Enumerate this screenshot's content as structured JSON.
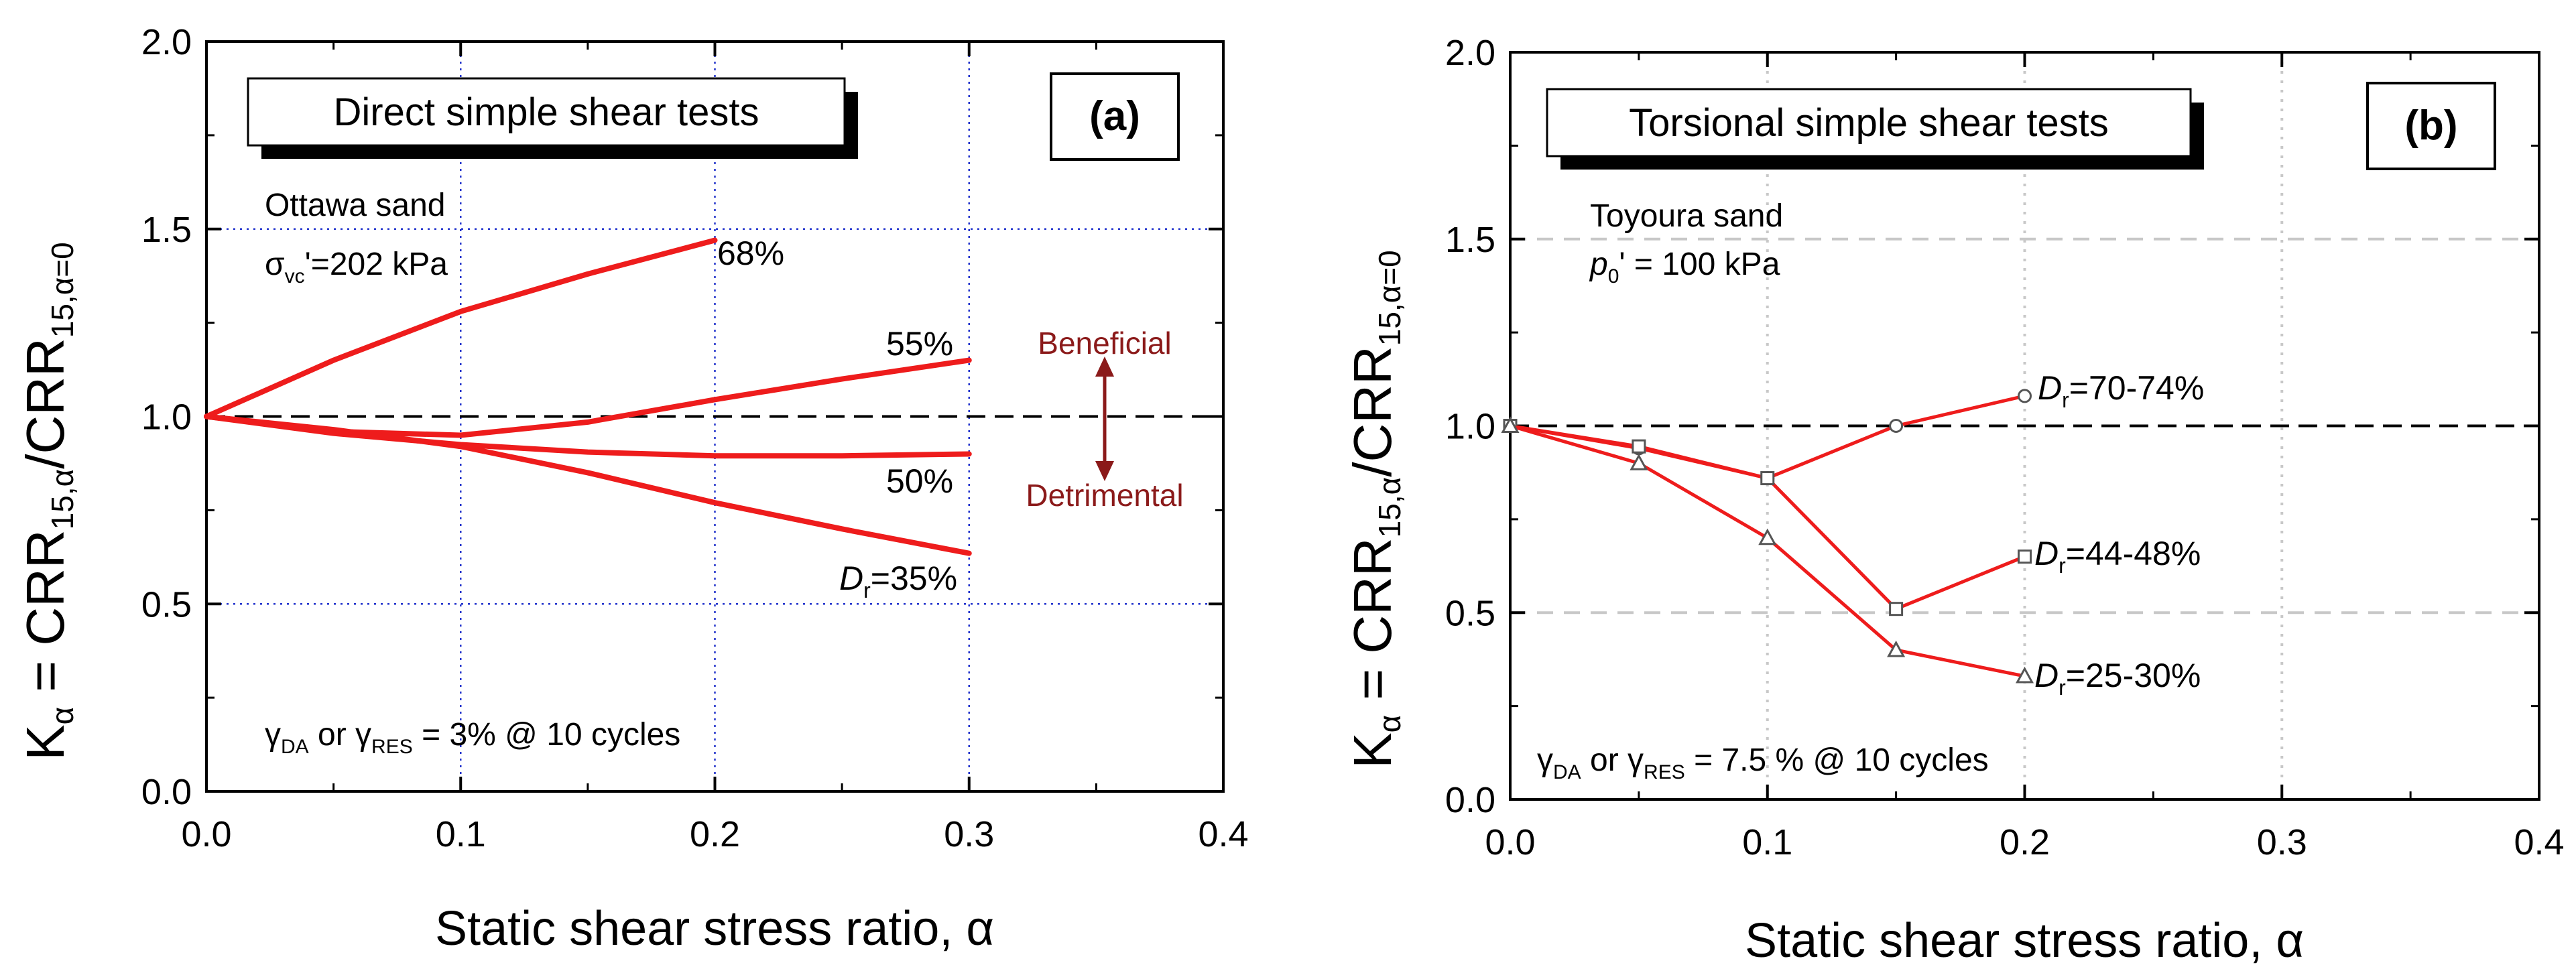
{
  "chart_data": [
    {
      "type": "line",
      "panel": "(a)",
      "box_title": "Direct simple shear tests",
      "xlabel": "Static shear stress ratio, α",
      "ylabel": {
        "main": "K",
        "sub_alpha": "α",
        "eq": " = CRR",
        "sub1": "15,α",
        "slash": "/CRR",
        "sub2": "15,α=0"
      },
      "xlim": [
        0.0,
        0.4
      ],
      "ylim": [
        0.0,
        2.0
      ],
      "xticks": [
        "0.0",
        "0.1",
        "0.2",
        "0.3",
        "0.4"
      ],
      "yticks": [
        "0.0",
        "0.5",
        "1.0",
        "1.5",
        "2.0"
      ],
      "grid_x": [
        0.1,
        0.2,
        0.3
      ],
      "grid_y": [
        0.5,
        1.5
      ],
      "grid_style": "blue dotted",
      "reference_line": 1.0,
      "annotations": {
        "material": "Ottawa sand",
        "stress": {
          "symbol": "σ",
          "sub": "vc",
          "text": "'=202 kPa"
        },
        "criterion": {
          "g1": "γ",
          "s1": "DA",
          "or": " or ",
          "g2": "γ",
          "s2": "RES",
          "rest": " = 3% @ 10 cycles"
        },
        "beneficial": "Beneficial",
        "detrimental": "Detrimental"
      },
      "series": [
        {
          "name": "68%",
          "label": "68%",
          "x": [
            0,
            0.05,
            0.1,
            0.15,
            0.2
          ],
          "y": [
            1.0,
            1.15,
            1.28,
            1.38,
            1.47
          ]
        },
        {
          "name": "55%",
          "label": "55%",
          "x": [
            0,
            0.05,
            0.1,
            0.15,
            0.2,
            0.25,
            0.3
          ],
          "y": [
            1.0,
            0.96,
            0.95,
            0.985,
            1.045,
            1.1,
            1.15
          ]
        },
        {
          "name": "50%",
          "label": "50%",
          "x": [
            0,
            0.05,
            0.1,
            0.15,
            0.2,
            0.25,
            0.3
          ],
          "y": [
            1.0,
            0.955,
            0.925,
            0.905,
            0.895,
            0.895,
            0.9
          ]
        },
        {
          "name": "Dr=35%",
          "label_italic": "D",
          "label_sub": "r",
          "label_rest": "=35%",
          "x": [
            0,
            0.05,
            0.1,
            0.15,
            0.2,
            0.25,
            0.3
          ],
          "y": [
            1.0,
            0.965,
            0.92,
            0.85,
            0.77,
            0.7,
            0.635
          ]
        }
      ]
    },
    {
      "type": "line",
      "panel": "(b)",
      "box_title": "Torsional simple shear tests",
      "xlabel": "Static shear stress ratio, α",
      "ylabel": {
        "main": "K",
        "sub_alpha": "α",
        "eq": " = CRR",
        "sub1": "15,α",
        "slash": "/CRR",
        "sub2": "15,α=0"
      },
      "xlim": [
        0.0,
        0.4
      ],
      "ylim": [
        0.0,
        2.0
      ],
      "xticks": [
        "0.0",
        "0.1",
        "0.2",
        "0.3",
        "0.4"
      ],
      "yticks": [
        "0.0",
        "0.5",
        "1.0",
        "1.5",
        "2.0"
      ],
      "grid_x": [
        0.1,
        0.2,
        0.3
      ],
      "grid_y": [
        0.5,
        1.5
      ],
      "grid_style": "grey dotted/dashed",
      "reference_line": 1.0,
      "annotations": {
        "material": "Toyoura sand",
        "stress": {
          "symbol": "p",
          "sub": "0",
          "text": "' = 100 kPa"
        },
        "criterion": {
          "g1": "γ",
          "s1": "DA",
          "or": " or ",
          "g2": "γ",
          "s2": "RES",
          "rest": " = 7.5 % @ 10 cycles"
        }
      },
      "series": [
        {
          "name": "Dr=70-74%",
          "marker": "circle",
          "label_italic": "D",
          "label_sub": "r",
          "label_rest": "=70-74%",
          "x": [
            0,
            0.05,
            0.1,
            0.15,
            0.2
          ],
          "y": [
            1.0,
            0.94,
            0.86,
            1.0,
            1.08
          ]
        },
        {
          "name": "Dr=44-48%",
          "marker": "square",
          "label_italic": "D",
          "label_sub": "r",
          "label_rest": "=44-48%",
          "x": [
            0,
            0.05,
            0.1,
            0.15,
            0.2
          ],
          "y": [
            1.0,
            0.945,
            0.86,
            0.51,
            0.65
          ]
        },
        {
          "name": "Dr=25-30%",
          "marker": "triangle",
          "label_italic": "D",
          "label_sub": "r",
          "label_rest": "=25-30%",
          "x": [
            0,
            0.05,
            0.1,
            0.15,
            0.2
          ],
          "y": [
            1.0,
            0.9,
            0.7,
            0.4,
            0.33
          ]
        }
      ]
    }
  ]
}
